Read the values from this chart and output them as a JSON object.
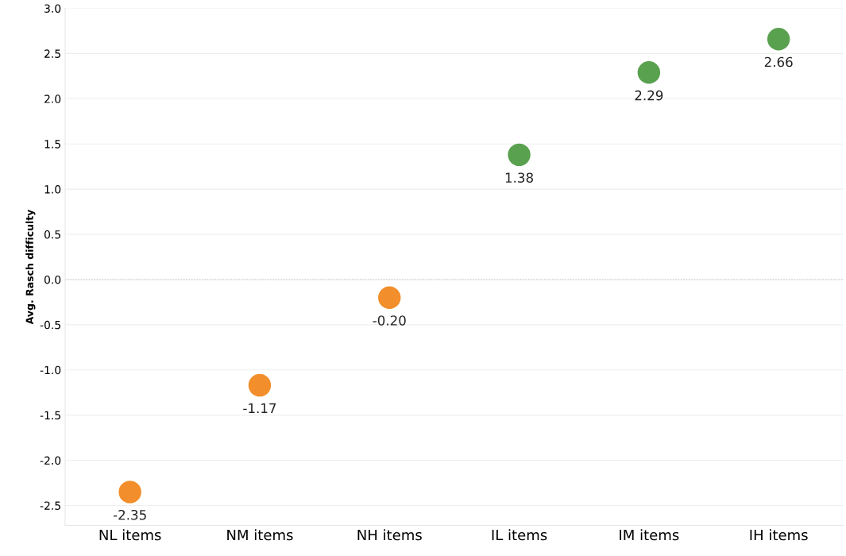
{
  "chart_data": {
    "type": "scatter",
    "ylabel": "Avg. Rasch difficulty",
    "categories": [
      "NL items",
      "NM items",
      "NH items",
      "IL items",
      "IM items",
      "IH items"
    ],
    "values": [
      -2.35,
      -1.17,
      -0.2,
      1.38,
      2.29,
      2.66
    ],
    "colors": [
      "#f28e2b",
      "#f28e2b",
      "#f28e2b",
      "#59a14f",
      "#59a14f",
      "#59a14f"
    ],
    "value_labels": [
      "-2.35",
      "-1.17",
      "-0.20",
      "1.38",
      "2.29",
      "2.66"
    ],
    "marker": "circle",
    "ylim": [
      -2.72,
      3.0
    ],
    "yticks": [
      {
        "value": -2.5,
        "label": "-2.5"
      },
      {
        "value": -2.0,
        "label": "-2.0"
      },
      {
        "value": -1.5,
        "label": "-1.5"
      },
      {
        "value": -1.0,
        "label": "-1.0"
      },
      {
        "value": -0.5,
        "label": "-0.5"
      },
      {
        "value": 0.0,
        "label": "0.0"
      },
      {
        "value": 0.5,
        "label": "0.5"
      },
      {
        "value": 1.0,
        "label": "1.0"
      },
      {
        "value": 1.5,
        "label": "1.5"
      },
      {
        "value": 2.0,
        "label": "2.0"
      },
      {
        "value": 2.5,
        "label": "2.5"
      },
      {
        "value": 3.0,
        "label": "3.0"
      }
    ],
    "grid": "y",
    "ref_lines": [
      {
        "axis": "y",
        "value": 0,
        "color": "#c8c8c8",
        "line_style": "dotted"
      }
    ]
  }
}
